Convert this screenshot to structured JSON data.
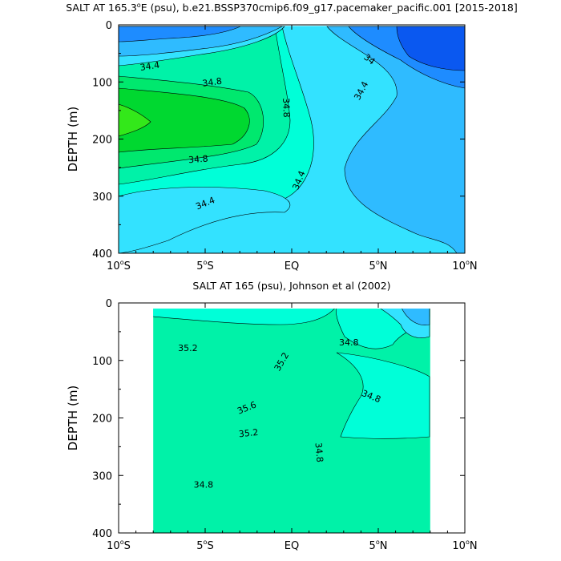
{
  "chart_data": [
    {
      "type": "contour",
      "title_prefix": "SALT AT 165.3",
      "title_sup": "o",
      "title_suffix": "E (psu), b.e21.BSSP370cmip6.f09_g17.pacemaker_pacific.001 [2015-2018]",
      "ylabel": "DEPTH (m)",
      "xlabel": "",
      "xlim": [
        -10,
        10
      ],
      "ylim": [
        400,
        0
      ],
      "y_reversed": true,
      "x_ticks": [
        {
          "value": -10,
          "label": "10",
          "sup": "o",
          "suffix": "S"
        },
        {
          "value": -5,
          "label": "5",
          "sup": "o",
          "suffix": "S"
        },
        {
          "value": 0,
          "label": "EQ",
          "sup": "",
          "suffix": ""
        },
        {
          "value": 5,
          "label": "5",
          "sup": "o",
          "suffix": "N"
        },
        {
          "value": 10,
          "label": "10",
          "sup": "o",
          "suffix": "N"
        }
      ],
      "y_ticks": [
        0,
        100,
        200,
        300,
        400
      ],
      "contour_labels": [
        {
          "text": "34.4",
          "lat": -8.2,
          "depth": 72,
          "angle": -8
        },
        {
          "text": "34.8",
          "lat": -4.6,
          "depth": 100,
          "angle": -8
        },
        {
          "text": "34.8",
          "lat": -0.3,
          "depth": 145,
          "angle": 88
        },
        {
          "text": "34.8",
          "lat": -5.4,
          "depth": 235,
          "angle": -4
        },
        {
          "text": "34.4",
          "lat": -5.0,
          "depth": 312,
          "angle": -22
        },
        {
          "text": "34.4",
          "lat": 0.4,
          "depth": 272,
          "angle": -68
        },
        {
          "text": "34.4",
          "lat": 4.0,
          "depth": 115,
          "angle": -62
        },
        {
          "text": "34",
          "lat": 4.5,
          "depth": 60,
          "angle": 38
        }
      ],
      "colors": [
        "#0a58f0",
        "#1e8cff",
        "#2fbbff",
        "#33e2ff",
        "#00ffd8",
        "#00f2a8",
        "#00e86e",
        "#00d830",
        "#33e81a"
      ]
    },
    {
      "type": "contour",
      "title_prefix": "SALT AT 165 (psu), Johnson et al (2002)",
      "title_sup": "",
      "title_suffix": "",
      "ylabel": "DEPTH (m)",
      "xlabel": "",
      "xlim": [
        -10,
        10
      ],
      "ylim": [
        400,
        0
      ],
      "y_reversed": true,
      "data_range": {
        "lat": [
          -8,
          8
        ],
        "depth": [
          10,
          400
        ]
      },
      "x_ticks": [
        {
          "value": -10,
          "label": "10",
          "sup": "o",
          "suffix": "S"
        },
        {
          "value": -5,
          "label": "5",
          "sup": "o",
          "suffix": "S"
        },
        {
          "value": 0,
          "label": "EQ",
          "sup": "",
          "suffix": ""
        },
        {
          "value": 5,
          "label": "5",
          "sup": "o",
          "suffix": "N"
        },
        {
          "value": 10,
          "label": "10",
          "sup": "o",
          "suffix": "N"
        }
      ],
      "y_ticks": [
        0,
        100,
        200,
        300,
        400
      ],
      "contour_labels": [
        {
          "text": "35.2",
          "lat": -6.0,
          "depth": 78,
          "angle": 0
        },
        {
          "text": "35.2",
          "lat": -0.6,
          "depth": 102,
          "angle": -60
        },
        {
          "text": "35.6",
          "lat": -2.6,
          "depth": 182,
          "angle": -22
        },
        {
          "text": "35.2",
          "lat": -2.5,
          "depth": 226,
          "angle": -6
        },
        {
          "text": "34.8",
          "lat": 3.3,
          "depth": 68,
          "angle": 0
        },
        {
          "text": "34.8",
          "lat": 4.6,
          "depth": 162,
          "angle": 22
        },
        {
          "text": "34.8",
          "lat": 1.6,
          "depth": 260,
          "angle": 85
        },
        {
          "text": "34.8",
          "lat": -5.1,
          "depth": 316,
          "angle": 0
        }
      ],
      "colors": [
        "#1e8cff",
        "#2fbbff",
        "#33e2ff",
        "#00ffd8",
        "#00f2a8",
        "#00e86e",
        "#55f000",
        "#b8f51a",
        "#ffff1a",
        "#ffdc28"
      ]
    }
  ]
}
